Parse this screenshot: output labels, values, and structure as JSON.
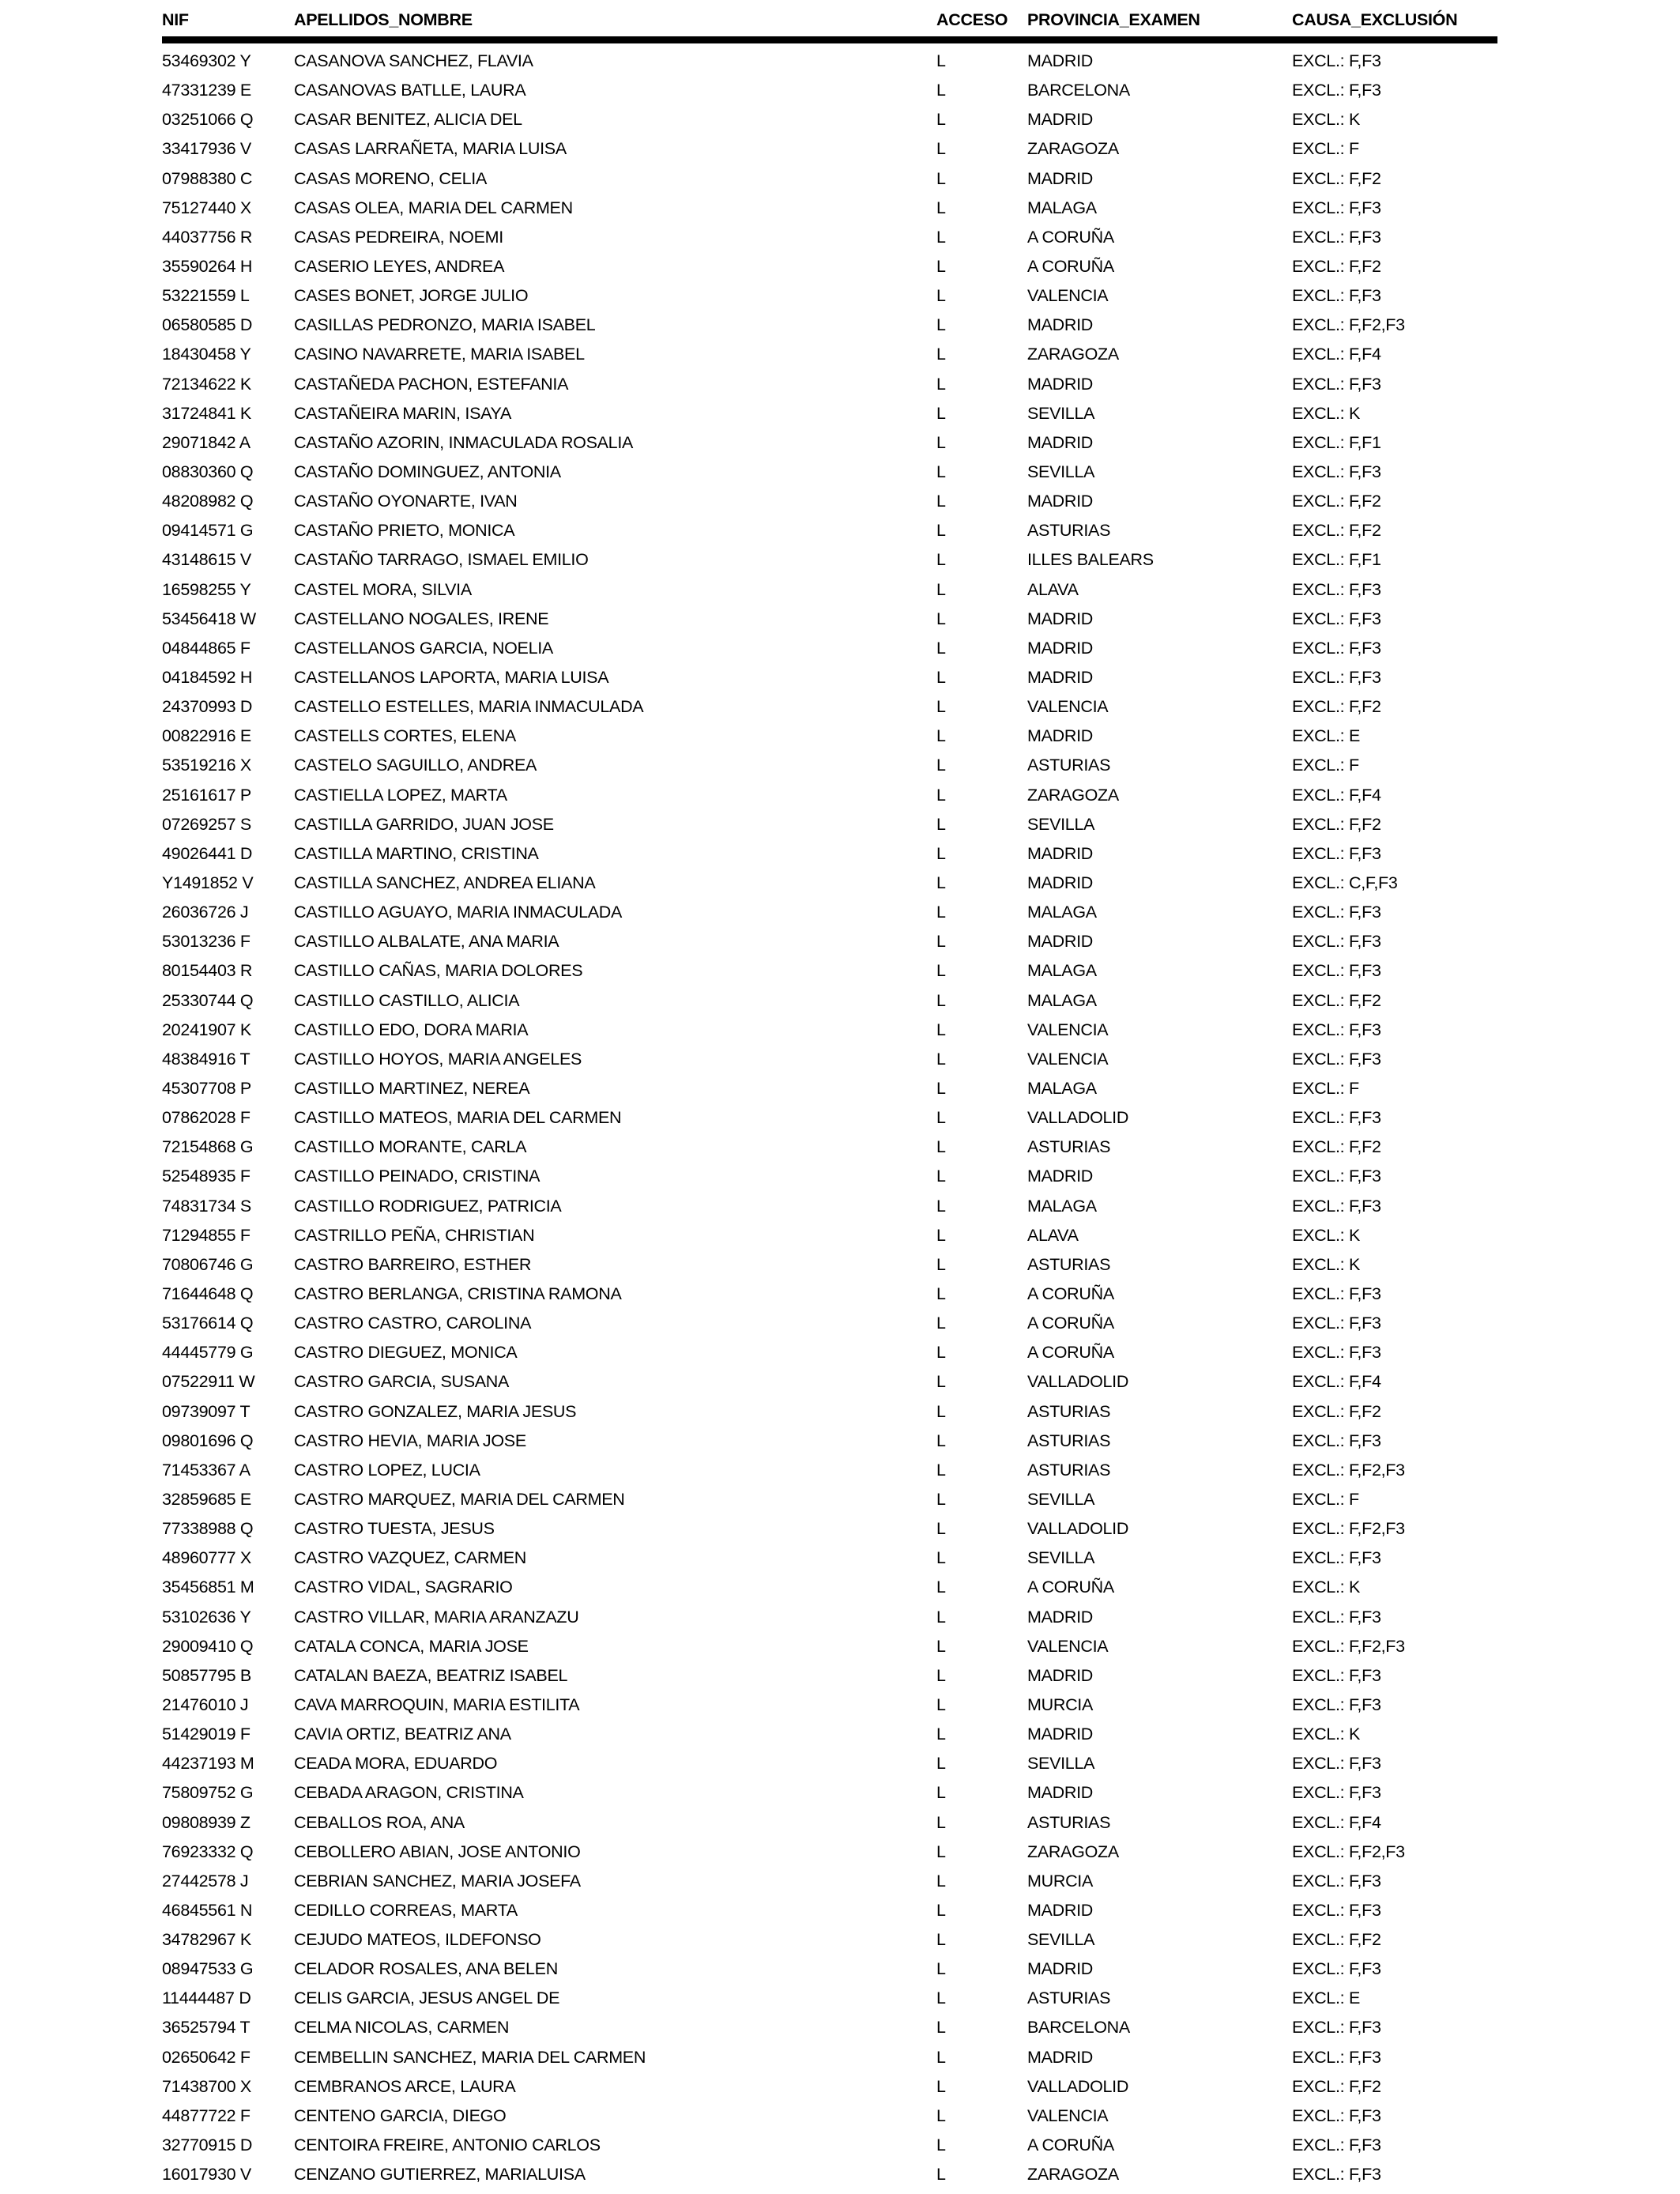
{
  "page": {
    "header": {
      "nif": "NIF",
      "apellidos_nombre": "APELLIDOS_NOMBRE",
      "acceso": "ACCESO",
      "provincia_examen": "PROVINCIA_EXAMEN",
      "causa_exclusion": "CAUSA_EXCLUSIÓN"
    },
    "text_color": "#000000",
    "background_color": "#ffffff",
    "rows": [
      [
        "53469302 Y",
        "CASANOVA SANCHEZ, FLAVIA",
        "L",
        "MADRID",
        "EXCL.: F,F3"
      ],
      [
        "47331239 E",
        "CASANOVAS BATLLE, LAURA",
        "L",
        "BARCELONA",
        "EXCL.: F,F3"
      ],
      [
        "03251066 Q",
        "CASAR BENITEZ, ALICIA DEL",
        "L",
        "MADRID",
        "EXCL.: K"
      ],
      [
        "33417936 V",
        "CASAS LARRAÑETA, MARIA LUISA",
        "L",
        "ZARAGOZA",
        "EXCL.: F"
      ],
      [
        "07988380 C",
        "CASAS MORENO, CELIA",
        "L",
        "MADRID",
        "EXCL.: F,F2"
      ],
      [
        "75127440 X",
        "CASAS OLEA, MARIA DEL CARMEN",
        "L",
        "MALAGA",
        "EXCL.: F,F3"
      ],
      [
        "44037756 R",
        "CASAS PEDREIRA, NOEMI",
        "L",
        "A CORUÑA",
        "EXCL.: F,F3"
      ],
      [
        "35590264 H",
        "CASERIO LEYES, ANDREA",
        "L",
        "A CORUÑA",
        "EXCL.: F,F2"
      ],
      [
        "53221559 L",
        "CASES BONET, JORGE JULIO",
        "L",
        "VALENCIA",
        "EXCL.: F,F3"
      ],
      [
        "06580585 D",
        "CASILLAS PEDRONZO, MARIA ISABEL",
        "L",
        "MADRID",
        "EXCL.: F,F2,F3"
      ],
      [
        "18430458 Y",
        "CASINO NAVARRETE, MARIA ISABEL",
        "L",
        "ZARAGOZA",
        "EXCL.: F,F4"
      ],
      [
        "72134622 K",
        "CASTAÑEDA PACHON, ESTEFANIA",
        "L",
        "MADRID",
        "EXCL.: F,F3"
      ],
      [
        "31724841 K",
        "CASTAÑEIRA MARIN, ISAYA",
        "L",
        "SEVILLA",
        "EXCL.: K"
      ],
      [
        "29071842 A",
        "CASTAÑO AZORIN, INMACULADA ROSALIA",
        "L",
        "MADRID",
        "EXCL.: F,F1"
      ],
      [
        "08830360 Q",
        "CASTAÑO DOMINGUEZ, ANTONIA",
        "L",
        "SEVILLA",
        "EXCL.: F,F3"
      ],
      [
        "48208982 Q",
        "CASTAÑO OYONARTE, IVAN",
        "L",
        "MADRID",
        "EXCL.: F,F2"
      ],
      [
        "09414571 G",
        "CASTAÑO PRIETO, MONICA",
        "L",
        "ASTURIAS",
        "EXCL.: F,F2"
      ],
      [
        "43148615 V",
        "CASTAÑO TARRAGO, ISMAEL EMILIO",
        "L",
        "ILLES BALEARS",
        "EXCL.: F,F1"
      ],
      [
        "16598255 Y",
        "CASTEL MORA, SILVIA",
        "L",
        "ALAVA",
        "EXCL.: F,F3"
      ],
      [
        "53456418 W",
        "CASTELLANO NOGALES, IRENE",
        "L",
        "MADRID",
        "EXCL.: F,F3"
      ],
      [
        "04844865 F",
        "CASTELLANOS GARCIA, NOELIA",
        "L",
        "MADRID",
        "EXCL.: F,F3"
      ],
      [
        "04184592 H",
        "CASTELLANOS LAPORTA, MARIA LUISA",
        "L",
        "MADRID",
        "EXCL.: F,F3"
      ],
      [
        "24370993 D",
        "CASTELLO ESTELLES, MARIA INMACULADA",
        "L",
        "VALENCIA",
        "EXCL.: F,F2"
      ],
      [
        "00822916 E",
        "CASTELLS CORTES, ELENA",
        "L",
        "MADRID",
        "EXCL.: E"
      ],
      [
        "53519216 X",
        "CASTELO SAGUILLO, ANDREA",
        "L",
        "ASTURIAS",
        "EXCL.: F"
      ],
      [
        "25161617 P",
        "CASTIELLA LOPEZ, MARTA",
        "L",
        "ZARAGOZA",
        "EXCL.: F,F4"
      ],
      [
        "07269257 S",
        "CASTILLA GARRIDO, JUAN JOSE",
        "L",
        "SEVILLA",
        "EXCL.: F,F2"
      ],
      [
        "49026441 D",
        "CASTILLA MARTINO, CRISTINA",
        "L",
        "MADRID",
        "EXCL.: F,F3"
      ],
      [
        "Y1491852 V",
        "CASTILLA SANCHEZ, ANDREA ELIANA",
        "L",
        "MADRID",
        "EXCL.: C,F,F3"
      ],
      [
        "26036726 J",
        "CASTILLO AGUAYO, MARIA INMACULADA",
        "L",
        "MALAGA",
        "EXCL.: F,F3"
      ],
      [
        "53013236 F",
        "CASTILLO ALBALATE, ANA MARIA",
        "L",
        "MADRID",
        "EXCL.: F,F3"
      ],
      [
        "80154403 R",
        "CASTILLO CAÑAS, MARIA DOLORES",
        "L",
        "MALAGA",
        "EXCL.: F,F3"
      ],
      [
        "25330744 Q",
        "CASTILLO CASTILLO, ALICIA",
        "L",
        "MALAGA",
        "EXCL.: F,F2"
      ],
      [
        "20241907 K",
        "CASTILLO EDO, DORA MARIA",
        "L",
        "VALENCIA",
        "EXCL.: F,F3"
      ],
      [
        "48384916 T",
        "CASTILLO HOYOS, MARIA ANGELES",
        "L",
        "VALENCIA",
        "EXCL.: F,F3"
      ],
      [
        "45307708 P",
        "CASTILLO MARTINEZ, NEREA",
        "L",
        "MALAGA",
        "EXCL.: F"
      ],
      [
        "07862028 F",
        "CASTILLO MATEOS, MARIA DEL CARMEN",
        "L",
        "VALLADOLID",
        "EXCL.: F,F3"
      ],
      [
        "72154868 G",
        "CASTILLO MORANTE, CARLA",
        "L",
        "ASTURIAS",
        "EXCL.: F,F2"
      ],
      [
        "52548935 F",
        "CASTILLO PEINADO, CRISTINA",
        "L",
        "MADRID",
        "EXCL.: F,F3"
      ],
      [
        "74831734 S",
        "CASTILLO RODRIGUEZ, PATRICIA",
        "L",
        "MALAGA",
        "EXCL.: F,F3"
      ],
      [
        "71294855 F",
        "CASTRILLO PEÑA, CHRISTIAN",
        "L",
        "ALAVA",
        "EXCL.: K"
      ],
      [
        "70806746 G",
        "CASTRO BARREIRO, ESTHER",
        "L",
        "ASTURIAS",
        "EXCL.: K"
      ],
      [
        "71644648 Q",
        "CASTRO BERLANGA, CRISTINA RAMONA",
        "L",
        "A CORUÑA",
        "EXCL.: F,F3"
      ],
      [
        "53176614 Q",
        "CASTRO CASTRO, CAROLINA",
        "L",
        "A CORUÑA",
        "EXCL.: F,F3"
      ],
      [
        "44445779 G",
        "CASTRO DIEGUEZ, MONICA",
        "L",
        "A CORUÑA",
        "EXCL.: F,F3"
      ],
      [
        "07522911 W",
        "CASTRO GARCIA, SUSANA",
        "L",
        "VALLADOLID",
        "EXCL.: F,F4"
      ],
      [
        "09739097 T",
        "CASTRO GONZALEZ, MARIA JESUS",
        "L",
        "ASTURIAS",
        "EXCL.: F,F2"
      ],
      [
        "09801696 Q",
        "CASTRO HEVIA, MARIA JOSE",
        "L",
        "ASTURIAS",
        "EXCL.: F,F3"
      ],
      [
        "71453367 A",
        "CASTRO LOPEZ, LUCIA",
        "L",
        "ASTURIAS",
        "EXCL.: F,F2,F3"
      ],
      [
        "32859685 E",
        "CASTRO MARQUEZ, MARIA DEL CARMEN",
        "L",
        "SEVILLA",
        "EXCL.: F"
      ],
      [
        "77338988 Q",
        "CASTRO TUESTA, JESUS",
        "L",
        "VALLADOLID",
        "EXCL.: F,F2,F3"
      ],
      [
        "48960777 X",
        "CASTRO VAZQUEZ, CARMEN",
        "L",
        "SEVILLA",
        "EXCL.: F,F3"
      ],
      [
        "35456851 M",
        "CASTRO VIDAL, SAGRARIO",
        "L",
        "A CORUÑA",
        "EXCL.: K"
      ],
      [
        "53102636 Y",
        "CASTRO VILLAR, MARIA ARANZAZU",
        "L",
        "MADRID",
        "EXCL.: F,F3"
      ],
      [
        "29009410 Q",
        "CATALA CONCA, MARIA JOSE",
        "L",
        "VALENCIA",
        "EXCL.: F,F2,F3"
      ],
      [
        "50857795 B",
        "CATALAN BAEZA, BEATRIZ ISABEL",
        "L",
        "MADRID",
        "EXCL.: F,F3"
      ],
      [
        "21476010 J",
        "CAVA MARROQUIN, MARIA ESTILITA",
        "L",
        "MURCIA",
        "EXCL.: F,F3"
      ],
      [
        "51429019 F",
        "CAVIA ORTIZ, BEATRIZ ANA",
        "L",
        "MADRID",
        "EXCL.: K"
      ],
      [
        "44237193 M",
        "CEADA MORA, EDUARDO",
        "L",
        "SEVILLA",
        "EXCL.: F,F3"
      ],
      [
        "75809752 G",
        "CEBADA ARAGON, CRISTINA",
        "L",
        "MADRID",
        "EXCL.: F,F3"
      ],
      [
        "09808939 Z",
        "CEBALLOS ROA, ANA",
        "L",
        "ASTURIAS",
        "EXCL.: F,F4"
      ],
      [
        "76923332 Q",
        "CEBOLLERO ABIAN, JOSE ANTONIO",
        "L",
        "ZARAGOZA",
        "EXCL.: F,F2,F3"
      ],
      [
        "27442578 J",
        "CEBRIAN SANCHEZ, MARIA JOSEFA",
        "L",
        "MURCIA",
        "EXCL.: F,F3"
      ],
      [
        "46845561 N",
        "CEDILLO CORREAS, MARTA",
        "L",
        "MADRID",
        "EXCL.: F,F3"
      ],
      [
        "34782967 K",
        "CEJUDO MATEOS, ILDEFONSO",
        "L",
        "SEVILLA",
        "EXCL.: F,F2"
      ],
      [
        "08947533 G",
        "CELADOR ROSALES, ANA BELEN",
        "L",
        "MADRID",
        "EXCL.: F,F3"
      ],
      [
        "11444487 D",
        "CELIS GARCIA, JESUS ANGEL DE",
        "L",
        "ASTURIAS",
        "EXCL.: E"
      ],
      [
        "36525794 T",
        "CELMA NICOLAS, CARMEN",
        "L",
        "BARCELONA",
        "EXCL.: F,F3"
      ],
      [
        "02650642 F",
        "CEMBELLIN SANCHEZ, MARIA DEL CARMEN",
        "L",
        "MADRID",
        "EXCL.: F,F3"
      ],
      [
        "71438700 X",
        "CEMBRANOS ARCE, LAURA",
        "L",
        "VALLADOLID",
        "EXCL.: F,F2"
      ],
      [
        "44877722 F",
        "CENTENO GARCIA, DIEGO",
        "L",
        "VALENCIA",
        "EXCL.: F,F3"
      ],
      [
        "32770915 D",
        "CENTOIRA FREIRE, ANTONIO CARLOS",
        "L",
        "A CORUÑA",
        "EXCL.: F,F3"
      ],
      [
        "16017930 V",
        "CENZANO GUTIERREZ, MARIALUISA",
        "L",
        "ZARAGOZA",
        "EXCL.: F,F3"
      ]
    ]
  }
}
